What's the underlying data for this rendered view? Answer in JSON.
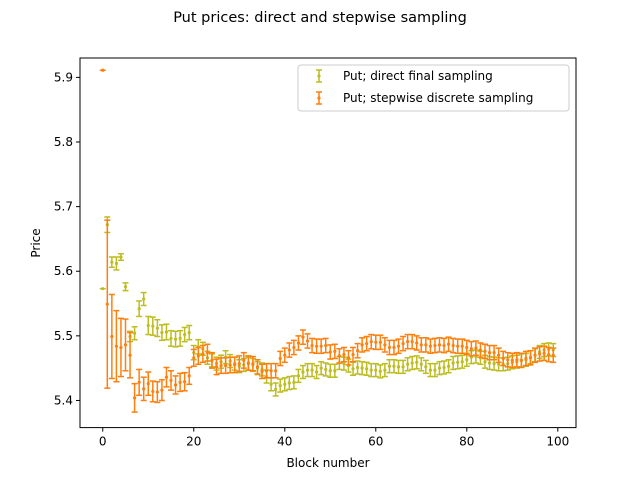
{
  "chart_data": {
    "type": "scatter",
    "title": "Put prices: direct and stepwise sampling",
    "xlabel": "Block number",
    "ylabel": "Price",
    "xlim": [
      -5,
      104
    ],
    "ylim": [
      5.358,
      5.93
    ],
    "xticks": [
      0,
      20,
      40,
      60,
      80,
      100
    ],
    "yticks": [
      5.4,
      5.5,
      5.6,
      5.7,
      5.8,
      5.9
    ],
    "grid": false,
    "legend": "top-right",
    "series": [
      {
        "name": "Put; direct final sampling",
        "color": "#bcbd22",
        "x": [
          0,
          1,
          2,
          3,
          4,
          5,
          6,
          7,
          8,
          9,
          10,
          11,
          12,
          13,
          14,
          15,
          16,
          17,
          18,
          19,
          20,
          21,
          22,
          23,
          24,
          25,
          26,
          27,
          28,
          29,
          30,
          31,
          32,
          33,
          34,
          35,
          36,
          37,
          38,
          39,
          40,
          41,
          42,
          43,
          44,
          45,
          46,
          47,
          48,
          49,
          50,
          51,
          52,
          53,
          54,
          55,
          56,
          57,
          58,
          59,
          60,
          61,
          62,
          63,
          64,
          65,
          66,
          67,
          68,
          69,
          70,
          71,
          72,
          73,
          74,
          75,
          76,
          77,
          78,
          79,
          80,
          81,
          82,
          83,
          84,
          85,
          86,
          87,
          88,
          89,
          90,
          91,
          92,
          93,
          94,
          95,
          96,
          97,
          98,
          99
        ],
        "y": [
          5.573,
          5.672,
          5.614,
          5.612,
          5.622,
          5.576,
          5.499,
          5.504,
          5.542,
          5.557,
          5.516,
          5.515,
          5.512,
          5.505,
          5.506,
          5.496,
          5.495,
          5.496,
          5.502,
          5.505,
          5.474,
          5.483,
          5.48,
          5.466,
          5.462,
          5.457,
          5.46,
          5.467,
          5.461,
          5.457,
          5.453,
          5.455,
          5.457,
          5.455,
          5.45,
          5.448,
          5.437,
          5.425,
          5.417,
          5.423,
          5.425,
          5.427,
          5.428,
          5.438,
          5.444,
          5.447,
          5.447,
          5.444,
          5.45,
          5.448,
          5.446,
          5.446,
          5.458,
          5.457,
          5.454,
          5.449,
          5.451,
          5.45,
          5.449,
          5.447,
          5.447,
          5.445,
          5.447,
          5.453,
          5.453,
          5.452,
          5.452,
          5.456,
          5.458,
          5.459,
          5.456,
          5.452,
          5.447,
          5.447,
          5.45,
          5.451,
          5.453,
          5.458,
          5.459,
          5.46,
          5.463,
          5.467,
          5.468,
          5.466,
          5.46,
          5.458,
          5.457,
          5.456,
          5.456,
          5.457,
          5.459,
          5.46,
          5.462,
          5.463,
          5.467,
          5.47,
          5.475,
          5.478,
          5.479,
          5.478
        ],
        "err": [
          0.0,
          0.012,
          0.008,
          0.01,
          0.005,
          0.006,
          0.008,
          0.01,
          0.012,
          0.01,
          0.014,
          0.014,
          0.013,
          0.012,
          0.012,
          0.012,
          0.012,
          0.012,
          0.011,
          0.011,
          0.011,
          0.011,
          0.01,
          0.01,
          0.01,
          0.01,
          0.01,
          0.01,
          0.01,
          0.01,
          0.01,
          0.01,
          0.01,
          0.01,
          0.01,
          0.01,
          0.01,
          0.01,
          0.01,
          0.01,
          0.01,
          0.01,
          0.01,
          0.01,
          0.01,
          0.01,
          0.01,
          0.01,
          0.01,
          0.01,
          0.01,
          0.01,
          0.01,
          0.01,
          0.01,
          0.01,
          0.01,
          0.01,
          0.01,
          0.01,
          0.01,
          0.01,
          0.01,
          0.01,
          0.01,
          0.01,
          0.01,
          0.01,
          0.01,
          0.01,
          0.01,
          0.01,
          0.01,
          0.01,
          0.01,
          0.01,
          0.01,
          0.01,
          0.01,
          0.01,
          0.01,
          0.01,
          0.01,
          0.01,
          0.01,
          0.01,
          0.01,
          0.01,
          0.01,
          0.01,
          0.01,
          0.01,
          0.01,
          0.01,
          0.01,
          0.01,
          0.01,
          0.01,
          0.01,
          0.01
        ]
      },
      {
        "name": "Put; stepwise discrete sampling",
        "color": "#ff7f0e",
        "x": [
          0,
          1,
          2,
          3,
          4,
          5,
          6,
          7,
          8,
          9,
          10,
          11,
          12,
          13,
          14,
          15,
          16,
          17,
          18,
          19,
          20,
          21,
          22,
          23,
          24,
          25,
          26,
          27,
          28,
          29,
          30,
          31,
          32,
          33,
          34,
          35,
          36,
          37,
          38,
          39,
          40,
          41,
          42,
          43,
          44,
          45,
          46,
          47,
          48,
          49,
          50,
          51,
          52,
          53,
          54,
          55,
          56,
          57,
          58,
          59,
          60,
          61,
          62,
          63,
          64,
          65,
          66,
          67,
          68,
          69,
          70,
          71,
          72,
          73,
          74,
          75,
          76,
          77,
          78,
          79,
          80,
          81,
          82,
          83,
          84,
          85,
          86,
          87,
          88,
          89,
          90,
          91,
          92,
          93,
          94,
          95,
          96,
          97,
          98,
          99
        ],
        "y": [
          5.911,
          5.549,
          5.499,
          5.484,
          5.482,
          5.486,
          5.47,
          5.404,
          5.428,
          5.418,
          5.426,
          5.414,
          5.413,
          5.416,
          5.436,
          5.431,
          5.424,
          5.428,
          5.429,
          5.438,
          5.466,
          5.469,
          5.472,
          5.474,
          5.462,
          5.452,
          5.454,
          5.454,
          5.455,
          5.455,
          5.457,
          5.462,
          5.458,
          5.457,
          5.452,
          5.445,
          5.446,
          5.446,
          5.446,
          5.465,
          5.47,
          5.478,
          5.482,
          5.489,
          5.498,
          5.492,
          5.485,
          5.484,
          5.484,
          5.485,
          5.475,
          5.476,
          5.469,
          5.471,
          5.466,
          5.471,
          5.477,
          5.486,
          5.488,
          5.491,
          5.49,
          5.49,
          5.486,
          5.482,
          5.482,
          5.484,
          5.488,
          5.491,
          5.491,
          5.489,
          5.486,
          5.486,
          5.484,
          5.485,
          5.486,
          5.485,
          5.487,
          5.485,
          5.484,
          5.484,
          5.482,
          5.48,
          5.481,
          5.478,
          5.476,
          5.474,
          5.474,
          5.47,
          5.465,
          5.463,
          5.462,
          5.463,
          5.462,
          5.465,
          5.466,
          5.47,
          5.472,
          5.473,
          5.471,
          5.47
        ],
        "err": [
          0.0,
          0.13,
          0.065,
          0.055,
          0.045,
          0.04,
          0.035,
          0.022,
          0.02,
          0.018,
          0.018,
          0.016,
          0.016,
          0.016,
          0.015,
          0.015,
          0.014,
          0.014,
          0.014,
          0.013,
          0.013,
          0.013,
          0.013,
          0.013,
          0.012,
          0.012,
          0.012,
          0.012,
          0.012,
          0.012,
          0.012,
          0.012,
          0.011,
          0.011,
          0.011,
          0.011,
          0.011,
          0.011,
          0.011,
          0.011,
          0.011,
          0.011,
          0.011,
          0.011,
          0.011,
          0.011,
          0.011,
          0.011,
          0.011,
          0.011,
          0.011,
          0.011,
          0.011,
          0.011,
          0.011,
          0.011,
          0.011,
          0.011,
          0.011,
          0.011,
          0.011,
          0.011,
          0.011,
          0.011,
          0.011,
          0.011,
          0.011,
          0.011,
          0.011,
          0.011,
          0.011,
          0.011,
          0.011,
          0.011,
          0.011,
          0.011,
          0.011,
          0.011,
          0.011,
          0.011,
          0.011,
          0.011,
          0.011,
          0.011,
          0.011,
          0.011,
          0.011,
          0.011,
          0.011,
          0.011,
          0.011,
          0.011,
          0.011,
          0.011,
          0.011,
          0.011,
          0.011,
          0.011,
          0.011,
          0.011
        ]
      }
    ]
  }
}
